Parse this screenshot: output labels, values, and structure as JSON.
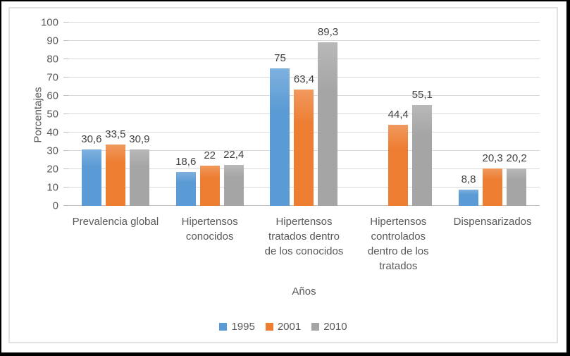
{
  "chart_data": {
    "type": "bar",
    "title": "",
    "xlabel": "Años",
    "ylabel": "Porcentajes",
    "ylim": [
      0,
      100
    ],
    "ytick_step": 10,
    "yticks": [
      0,
      10,
      20,
      30,
      40,
      50,
      60,
      70,
      80,
      90,
      100
    ],
    "grid": true,
    "legend_position": "bottom",
    "decimal_separator": ",",
    "categories": [
      "Prevalencia global",
      "Hipertensos conocidos",
      "Hipertensos tratados dentro de los conocidos",
      "Hipertensos controlados dentro de los tratados",
      "Dispensarizados"
    ],
    "category_lines": [
      [
        "Prevalencia global"
      ],
      [
        "Hipertensos",
        "conocidos"
      ],
      [
        "Hipertensos",
        "tratados dentro",
        "de los conocidos"
      ],
      [
        "Hipertensos",
        "controlados",
        "dentro de los",
        "tratados"
      ],
      [
        "Dispensarizados"
      ]
    ],
    "series": [
      {
        "name": "1995",
        "color": "#5B9BD5",
        "values": [
          30.6,
          18.6,
          75,
          null,
          8.8
        ],
        "labels": [
          "30,6",
          "18,6",
          "75",
          "",
          "8,8"
        ]
      },
      {
        "name": "2001",
        "color": "#ED7D31",
        "values": [
          33.5,
          22,
          63.4,
          44.4,
          20.3
        ],
        "labels": [
          "33,5",
          "22",
          "63,4",
          "44,4",
          "20,3"
        ]
      },
      {
        "name": "2010",
        "color": "#A5A5A5",
        "values": [
          30.9,
          22.4,
          89.3,
          55.1,
          20.2
        ],
        "labels": [
          "30,9",
          "22,4",
          "89,3",
          "55,1",
          "20,2"
        ]
      }
    ],
    "style_colors": {
      "gridline": "#D9D9D9",
      "axis_line": "#BFBFBF",
      "axis_text": "#595959",
      "data_label": "#404040",
      "chart_border": "#E2E2E2",
      "frame_border": "#000000"
    }
  }
}
